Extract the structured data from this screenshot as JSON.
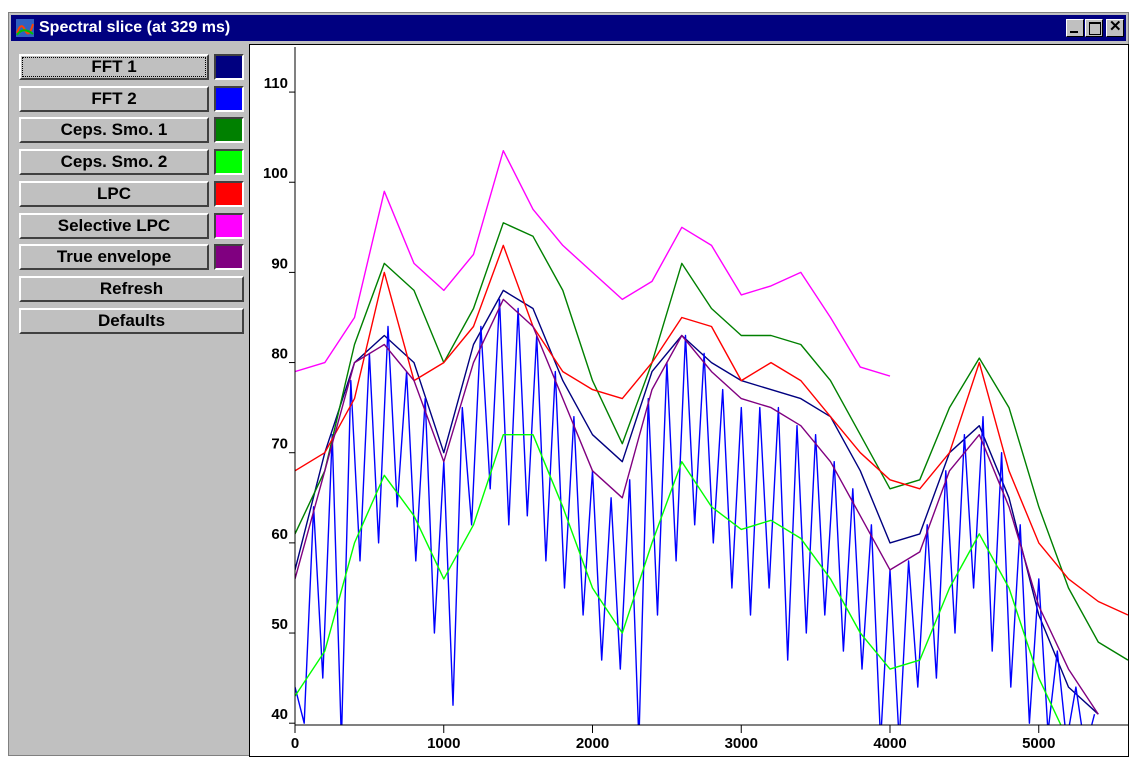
{
  "window": {
    "title": "Spectral slice (at  329 ms)"
  },
  "buttons": [
    "Refresh",
    "Defaults"
  ],
  "chart_data": {
    "type": "line",
    "xlim": [
      0,
      5600
    ],
    "ylim": [
      39.8,
      115
    ],
    "xticks": [
      0,
      1000,
      2000,
      3000,
      4000,
      5000
    ],
    "yticks": [
      40,
      50,
      60,
      70,
      80,
      90,
      100,
      110
    ],
    "series": [
      {
        "name": "FFT 1",
        "color": "#000080",
        "x": [
          0,
          200,
          400,
          600,
          800,
          1000,
          1200,
          1400,
          1600,
          1800,
          2000,
          2200,
          2400,
          2600,
          2800,
          3000,
          3200,
          3400,
          3600,
          3800,
          4000,
          4200,
          4400,
          4600,
          4800,
          5000,
          5200,
          5400
        ],
        "values": [
          57,
          70,
          80,
          83,
          80,
          70,
          82,
          88,
          86,
          78,
          72,
          69,
          79,
          83,
          80,
          78,
          77,
          76,
          74,
          68,
          60,
          61,
          70,
          73,
          65,
          52,
          44,
          41
        ]
      },
      {
        "name": "FFT 2",
        "color": "#0000ff",
        "x": [
          0,
          62,
          125,
          187,
          250,
          312,
          375,
          437,
          500,
          562,
          625,
          687,
          750,
          812,
          875,
          937,
          1000,
          1062,
          1125,
          1187,
          1250,
          1312,
          1375,
          1437,
          1500,
          1562,
          1625,
          1687,
          1750,
          1812,
          1875,
          1937,
          2000,
          2062,
          2125,
          2187,
          2250,
          2312,
          2375,
          2437,
          2500,
          2562,
          2625,
          2687,
          2750,
          2812,
          2875,
          2937,
          3000,
          3062,
          3125,
          3187,
          3250,
          3312,
          3375,
          3437,
          3500,
          3562,
          3625,
          3687,
          3750,
          3812,
          3875,
          3937,
          4000,
          4062,
          4125,
          4187,
          4250,
          4312,
          4375,
          4437,
          4500,
          4562,
          4625,
          4687,
          4750,
          4812,
          4875,
          4937,
          5000,
          5062,
          5125,
          5187,
          5250,
          5312,
          5375
        ],
        "values": [
          44,
          40,
          64,
          45,
          72,
          38,
          78,
          58,
          81,
          60,
          84,
          64,
          79,
          58,
          76,
          50,
          69,
          42,
          75,
          62,
          84,
          66,
          87,
          62,
          86,
          63,
          83,
          58,
          79,
          55,
          74,
          52,
          68,
          47,
          65,
          46,
          67,
          38,
          76,
          52,
          80,
          58,
          83,
          62,
          81,
          60,
          77,
          55,
          75,
          52,
          75,
          55,
          75,
          47,
          73,
          50,
          72,
          52,
          69,
          48,
          66,
          46,
          62,
          38,
          57,
          38,
          58,
          44,
          62,
          45,
          68,
          50,
          72,
          55,
          74,
          48,
          70,
          44,
          62,
          40,
          56,
          39,
          48,
          38,
          44,
          37,
          41
        ]
      },
      {
        "name": "Ceps. Smo. 1",
        "color": "#008000",
        "x": [
          0,
          200,
          400,
          600,
          800,
          1000,
          1200,
          1400,
          1600,
          1800,
          2000,
          2200,
          2400,
          2600,
          2800,
          3000,
          3200,
          3400,
          3600,
          3800,
          4000,
          4200,
          4400,
          4600,
          4800,
          5000,
          5200,
          5400,
          5600
        ],
        "values": [
          61,
          68,
          82,
          91,
          88,
          80,
          86,
          95.5,
          94,
          88,
          78,
          71,
          80,
          91,
          86,
          83,
          83,
          82,
          78,
          72,
          66,
          67,
          75,
          80.5,
          75,
          64,
          55,
          49,
          47
        ]
      },
      {
        "name": "Ceps. Smo. 2",
        "color": "#00ff00",
        "x": [
          0,
          200,
          400,
          600,
          800,
          1000,
          1200,
          1400,
          1600,
          1800,
          2000,
          2200,
          2400,
          2600,
          2800,
          3000,
          3200,
          3400,
          3600,
          3800,
          4000,
          4200,
          4400,
          4600,
          4800,
          5000,
          5200
        ],
        "values": [
          43,
          48,
          60,
          67.5,
          63,
          56,
          62,
          72,
          72,
          64,
          55,
          50,
          60,
          69,
          64,
          61.5,
          62.5,
          60.5,
          56,
          50,
          46,
          47,
          55,
          61,
          55,
          45,
          38
        ]
      },
      {
        "name": "LPC",
        "color": "#ff0000",
        "x": [
          0,
          200,
          400,
          600,
          800,
          1000,
          1200,
          1400,
          1600,
          1800,
          2000,
          2200,
          2400,
          2600,
          2800,
          3000,
          3200,
          3400,
          3600,
          3800,
          4000,
          4200,
          4400,
          4600,
          4800,
          5000,
          5200,
          5400,
          5600
        ],
        "values": [
          68,
          70,
          76,
          90,
          78,
          80,
          84,
          93,
          84,
          79,
          77,
          76,
          80,
          85,
          84,
          78,
          80,
          78,
          74,
          70,
          67,
          66,
          70,
          80,
          68,
          60,
          56,
          53.5,
          52
        ]
      },
      {
        "name": "Selective LPC",
        "color": "#ff00ff",
        "x": [
          0,
          200,
          400,
          600,
          800,
          1000,
          1200,
          1400,
          1600,
          1800,
          2000,
          2200,
          2400,
          2600,
          2800,
          3000,
          3200,
          3400,
          3600,
          3800,
          4000
        ],
        "values": [
          79,
          80,
          85,
          99,
          91,
          88,
          92,
          103.5,
          97,
          93,
          90,
          87,
          89,
          95,
          93,
          87.5,
          88.5,
          90,
          85,
          79.5,
          78.5
        ]
      },
      {
        "name": "True envelope",
        "color": "#800080",
        "x": [
          0,
          200,
          400,
          600,
          800,
          1000,
          1200,
          1400,
          1600,
          1800,
          2000,
          2200,
          2400,
          2600,
          2800,
          3000,
          3200,
          3400,
          3600,
          3800,
          4000,
          4200,
          4400,
          4600,
          4800,
          5000,
          5200,
          5400
        ],
        "values": [
          56,
          68,
          80,
          82,
          78,
          69,
          80,
          87,
          84,
          76,
          68,
          65,
          77,
          83,
          79,
          76,
          75,
          73,
          69,
          63,
          57,
          59,
          68,
          72,
          64,
          53,
          46,
          41
        ]
      }
    ]
  }
}
